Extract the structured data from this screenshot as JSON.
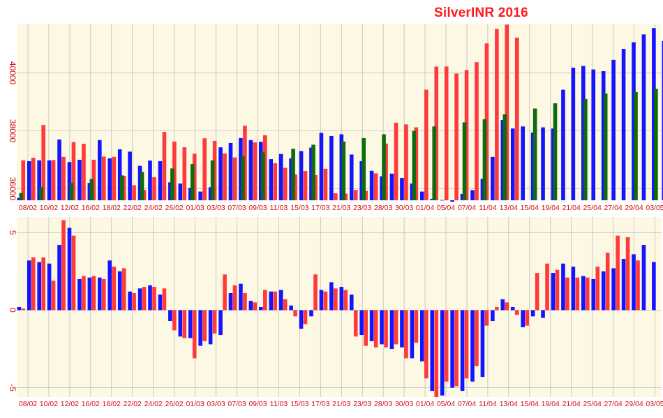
{
  "title": "SilverINR 2016",
  "colors": {
    "background": "#fcf8e3",
    "grid": "#b8b8b8",
    "blue": "#1414ff",
    "red": "#ff3a3a",
    "green": "#0f6b0f",
    "tick_label": "#d01010"
  },
  "chart_data": [
    {
      "type": "bar",
      "name": "price",
      "x_tick_labels": [
        "08/02",
        "10/02",
        "12/02",
        "16/02",
        "18/02",
        "22/02",
        "24/02",
        "26/02",
        "01/03",
        "03/03",
        "07/03",
        "09/03",
        "11/03",
        "15/03",
        "17/03",
        "21/03",
        "23/03",
        "28/03",
        "30/03",
        "01/04",
        "05/04",
        "07/04",
        "11/04",
        "13/04",
        "15/04",
        "19/04",
        "21/04",
        "25/04",
        "27/04",
        "29/04",
        "03/05"
      ],
      "y_tick_labels": [
        "36000",
        "38000",
        "40000"
      ],
      "y_ticks": [
        36000,
        38000,
        40000
      ],
      "ylim": [
        35600,
        41700
      ],
      "grid": true,
      "series": [
        {
          "color": "blue",
          "values": [
            35680,
            36950,
            36980,
            36980,
            37700,
            36920,
            37000,
            36200,
            37680,
            37050,
            37360,
            37280,
            36790,
            36970,
            36950,
            36220,
            36180,
            36030,
            35900,
            36050,
            37430,
            37580,
            37750,
            37680,
            37620,
            37020,
            37200,
            37050,
            37300,
            37420,
            37930,
            37820,
            37880,
            37180,
            36950,
            36620,
            36430,
            36520,
            36370,
            36180,
            35900,
            35650,
            35610,
            35550,
            35820,
            35950,
            36340,
            37100,
            38370,
            38080,
            38150,
            37940,
            38120,
            38080,
            39420,
            40180,
            40240,
            40120,
            40060,
            40450,
            40830,
            41060,
            41330,
            41550,
            41100
          ]
        },
        {
          "color": "red",
          "values": [
            36980,
            37070,
            38200,
            36990,
            37100,
            37610,
            37550,
            37000,
            37110,
            37100,
            36440,
            36120,
            35960,
            36400,
            37960,
            37630,
            37430,
            37210,
            37740,
            37650,
            37220,
            37080,
            38180,
            37600,
            37850,
            36880,
            36720,
            36490,
            36610,
            36470,
            36690,
            35840,
            35830,
            35960,
            35930,
            36530,
            37560,
            38280,
            38220,
            38120,
            39420,
            40220,
            40220,
            39980,
            40100,
            40370,
            41020,
            41520,
            41670,
            41220
          ]
        },
        {
          "color": "green",
          "values": [
            35850,
            36050,
            36200,
            36340,
            36460,
            36580,
            36700,
            36850,
            36980,
            37120,
            37260,
            37380,
            37520,
            37630,
            37750,
            37880,
            38000,
            38150,
            38290,
            38400,
            38570,
            38770,
            38950,
            39100,
            39290,
            39340,
            39450
          ]
        }
      ]
    },
    {
      "type": "bar",
      "name": "change",
      "x_tick_labels": [
        "08/02",
        "10/02",
        "12/02",
        "16/02",
        "18/02",
        "22/02",
        "24/02",
        "26/02",
        "01/03",
        "03/03",
        "07/03",
        "09/03",
        "11/03",
        "15/03",
        "17/03",
        "21/03",
        "23/03",
        "28/03",
        "30/03",
        "01/04",
        "05/04",
        "07/04",
        "11/04",
        "13/04",
        "15/04",
        "19/04",
        "21/04",
        "25/04",
        "27/04",
        "29/04",
        "03/05"
      ],
      "y_tick_labels": [
        "5",
        "0",
        "-5"
      ],
      "y_ticks": [
        5,
        0,
        -5
      ],
      "ylim": [
        -5.6,
        6.0
      ],
      "grid": true,
      "series": [
        {
          "color": "blue",
          "values": [
            0.2,
            3.2,
            3.1,
            3.0,
            4.2,
            5.3,
            2.0,
            2.1,
            2.1,
            3.2,
            2.5,
            1.2,
            1.4,
            1.6,
            1.0,
            -0.7,
            -1.7,
            -1.8,
            -2.3,
            -2.2,
            -1.6,
            1.1,
            1.7,
            0.6,
            0.2,
            1.2,
            1.3,
            0.3,
            -1.2,
            -0.4,
            1.3,
            1.8,
            1.5,
            1.0,
            -1.6,
            -2.0,
            -2.2,
            -2.5,
            -2.4,
            -3.1,
            -3.3,
            -5.2,
            -5.5,
            -5.0,
            -5.2,
            -4.6,
            -4.3,
            -0.7,
            0.7,
            0.2,
            -1.1,
            -0.4,
            -0.5,
            2.4,
            3.0,
            2.8,
            2.2,
            2.0,
            2.5,
            2.7,
            3.3,
            3.6,
            4.2,
            3.1
          ]
        },
        {
          "color": "red",
          "values": [
            0.1,
            3.4,
            3.4,
            1.9,
            5.8,
            4.8,
            2.2,
            2.2,
            2.0,
            2.8,
            2.7,
            1.1,
            1.5,
            1.5,
            1.4,
            -1.3,
            -1.8,
            -3.1,
            -2.0,
            -1.5,
            2.3,
            1.6,
            1.1,
            0.5,
            1.3,
            1.2,
            0.7,
            -0.4,
            -0.9,
            2.3,
            1.2,
            1.4,
            1.3,
            -1.7,
            -2.3,
            -2.4,
            -2.4,
            -2.2,
            -3.1,
            -2.1,
            -4.4,
            -5.6,
            -4.6,
            -4.9,
            -4.4,
            -3.6,
            -1.0,
            0.2,
            0.5,
            -0.3,
            -1.0,
            2.4,
            3.0,
            2.6,
            2.1,
            2.1,
            2.1,
            2.8,
            3.7,
            4.8,
            4.7,
            3.2
          ]
        }
      ]
    }
  ]
}
